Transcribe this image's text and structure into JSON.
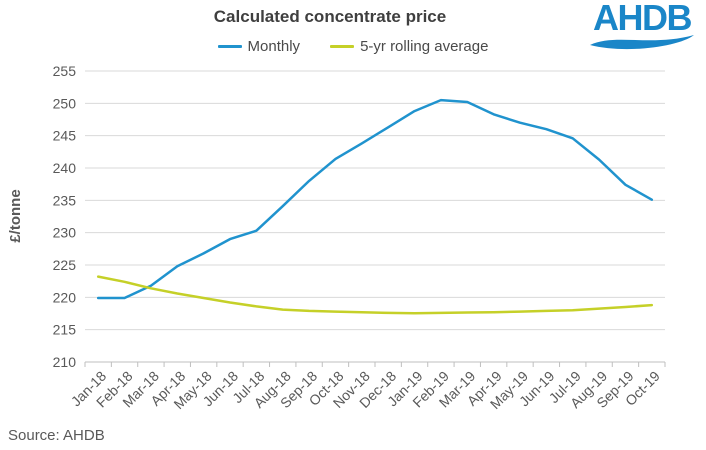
{
  "header": {
    "title": "Calculated concentrate price",
    "logo_text": "AHDB"
  },
  "footer": {
    "source": "Source: AHDB"
  },
  "colors": {
    "logo_blue": "#1a86c8",
    "axis_text": "#595959",
    "grid_line": "#d9d9d9",
    "axis_line": "#bfbfbf",
    "title_text": "#3f3f3f"
  },
  "chart_data": {
    "type": "line",
    "title": "Calculated concentrate price",
    "ylabel": "£/tonne",
    "xlabel": "",
    "ylim": [
      210,
      255
    ],
    "yticks": [
      210,
      215,
      220,
      225,
      230,
      235,
      240,
      245,
      250,
      255
    ],
    "grid": "horizontal",
    "legend_position": "top",
    "categories": [
      "Jan-18",
      "Feb-18",
      "Mar-18",
      "Apr-18",
      "May-18",
      "Jun-18",
      "Jul-18",
      "Aug-18",
      "Sep-18",
      "Oct-18",
      "Nov-18",
      "Dec-18",
      "Jan-19",
      "Feb-19",
      "Mar-19",
      "Apr-19",
      "May-19",
      "Jun-19",
      "Jul-19",
      "Aug-19",
      "Sep-19",
      "Oct-19"
    ],
    "series": [
      {
        "name": "Monthly",
        "color": "#2093ce",
        "values": [
          219.9,
          219.9,
          221.8,
          224.8,
          226.8,
          229.0,
          230.3,
          234.1,
          238.0,
          241.4,
          243.8,
          246.3,
          248.8,
          250.5,
          250.2,
          248.3,
          247.0,
          246.0,
          244.6,
          241.3,
          237.4,
          235.1
        ]
      },
      {
        "name": "5-yr rolling average",
        "color": "#c5d028",
        "values": [
          223.2,
          222.4,
          221.4,
          220.6,
          219.9,
          219.2,
          218.6,
          218.1,
          217.9,
          217.8,
          217.7,
          217.6,
          217.55,
          217.6,
          217.65,
          217.7,
          217.8,
          217.9,
          218.0,
          218.25,
          218.5,
          218.8
        ]
      }
    ]
  }
}
